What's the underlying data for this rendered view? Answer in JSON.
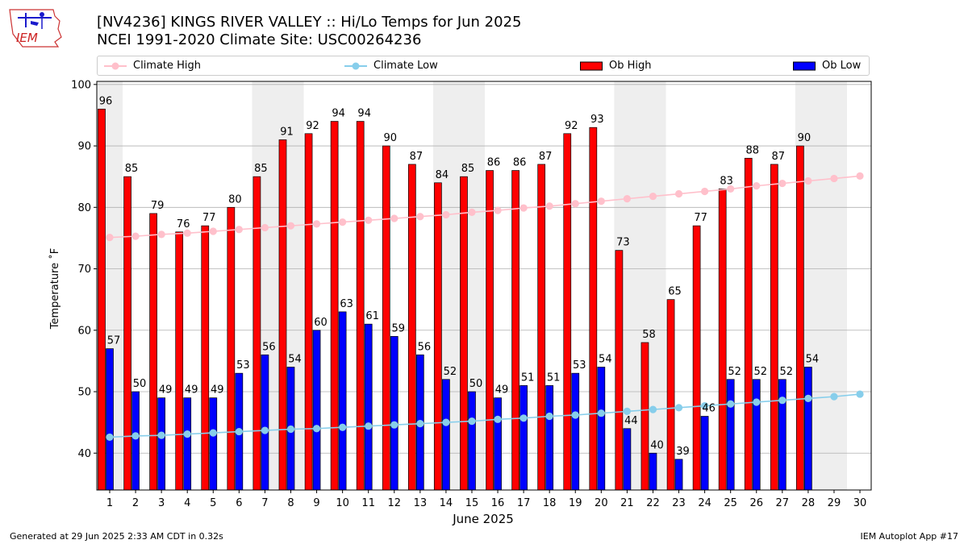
{
  "logo": {
    "text": "IEM"
  },
  "header": {
    "title_line1": "[NV4236] KINGS RIVER VALLEY :: Hi/Lo Temps for Jun 2025",
    "title_line2": "NCEI 1991-2020 Climate Site: USC00264236"
  },
  "legend": {
    "climate_high": "Climate High",
    "climate_low": "Climate Low",
    "ob_high": "Ob High",
    "ob_low": "Ob Low"
  },
  "colors": {
    "ob_high": "#ff0000",
    "ob_low": "#0000ff",
    "climate_high": "#ffc0cb",
    "climate_low": "#87ceeb",
    "weekend_band": "#eeeeee",
    "grid": "#b0b0b0"
  },
  "footer": {
    "left": "Generated at 29 Jun 2025 2:33 AM CDT in 0.32s",
    "right": "IEM Autoplot App #17"
  },
  "chart_data": {
    "type": "bar",
    "xlabel": "June 2025",
    "ylabel": "Temperature ˚F",
    "ylim": [
      34,
      100.5
    ],
    "yticks": [
      40,
      50,
      60,
      70,
      80,
      90,
      100
    ],
    "grid": "horizontal",
    "legend_position": "top",
    "categories": [
      "1",
      "2",
      "3",
      "4",
      "5",
      "6",
      "7",
      "8",
      "9",
      "10",
      "11",
      "12",
      "13",
      "14",
      "15",
      "16",
      "17",
      "18",
      "19",
      "20",
      "21",
      "22",
      "23",
      "24",
      "25",
      "26",
      "27",
      "28",
      "29",
      "30"
    ],
    "weekend_bands": [
      [
        1,
        1
      ],
      [
        7,
        8
      ],
      [
        14,
        15
      ],
      [
        21,
        22
      ],
      [
        28,
        29
      ]
    ],
    "series": [
      {
        "name": "Ob High",
        "kind": "bar",
        "values": [
          96,
          85,
          79,
          76,
          77,
          80,
          85,
          91,
          92,
          94,
          94,
          90,
          87,
          84,
          85,
          86,
          86,
          87,
          92,
          93,
          73,
          58,
          65,
          77,
          83,
          88,
          87,
          90,
          null,
          null
        ]
      },
      {
        "name": "Ob Low",
        "kind": "bar",
        "values": [
          57,
          50,
          49,
          49,
          49,
          53,
          56,
          54,
          60,
          63,
          61,
          59,
          56,
          52,
          50,
          49,
          51,
          51,
          53,
          54,
          44,
          40,
          39,
          46,
          52,
          52,
          52,
          54,
          null,
          null
        ]
      },
      {
        "name": "Climate High",
        "kind": "line",
        "values": [
          75.1,
          75.3,
          75.6,
          75.8,
          76.1,
          76.4,
          76.7,
          77.0,
          77.3,
          77.6,
          77.9,
          78.2,
          78.5,
          78.8,
          79.2,
          79.5,
          79.9,
          80.2,
          80.6,
          81.0,
          81.4,
          81.8,
          82.2,
          82.6,
          83.0,
          83.5,
          83.9,
          84.3,
          84.7,
          85.1
        ]
      },
      {
        "name": "Climate Low",
        "kind": "line",
        "values": [
          42.6,
          42.8,
          42.9,
          43.1,
          43.3,
          43.5,
          43.7,
          43.9,
          44.0,
          44.2,
          44.4,
          44.6,
          44.8,
          45.0,
          45.2,
          45.5,
          45.7,
          46.0,
          46.2,
          46.5,
          46.8,
          47.1,
          47.4,
          47.7,
          48.0,
          48.3,
          48.6,
          48.9,
          49.2,
          49.6
        ]
      }
    ]
  }
}
